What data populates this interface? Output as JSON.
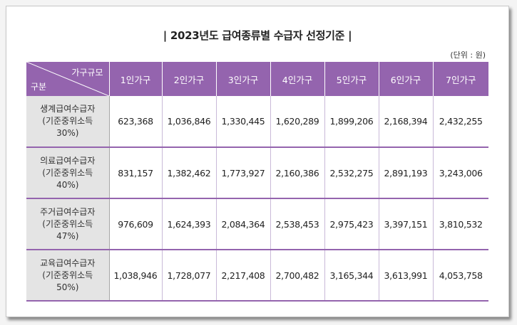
{
  "title": "| 2023년도 급여종류별 수급자 선정기준 |",
  "unit": "(단위 : 원)",
  "table": {
    "corner_top": "가구규모",
    "corner_bottom": "구분",
    "columns": [
      "1인가구",
      "2인가구",
      "3인가구",
      "4인가구",
      "5인가구",
      "6인가구",
      "7인가구"
    ],
    "rows": [
      {
        "label_line1": "생계급여수급자",
        "label_line2": "(기준중위소득",
        "label_line3": "30%)",
        "values": [
          "623,368",
          "1,036,846",
          "1,330,445",
          "1,620,289",
          "1,899,206",
          "2,168,394",
          "2,432,255"
        ]
      },
      {
        "label_line1": "의료급여수급자",
        "label_line2": "(기준중위소득",
        "label_line3": "40%)",
        "values": [
          "831,157",
          "1,382,462",
          "1,773,927",
          "2,160,386",
          "2,532,275",
          "2,891,193",
          "3,243,006"
        ]
      },
      {
        "label_line1": "주거급여수급자",
        "label_line2": "(기준중위소득",
        "label_line3": "47%)",
        "values": [
          "976,609",
          "1,624,393",
          "2,084,364",
          "2,538,453",
          "2,975,423",
          "3,397,151",
          "3,810,532"
        ]
      },
      {
        "label_line1": "교육급여수급자",
        "label_line2": "(기준중위소득",
        "label_line3": "50%)",
        "values": [
          "1,038,946",
          "1,728,077",
          "2,217,408",
          "2,700,482",
          "3,165,344",
          "3,613,991",
          "4,053,758"
        ]
      }
    ]
  },
  "colors": {
    "header_bg": "#9464ae",
    "row_divider": "#9464ae",
    "label_bg": "#e4e4e4"
  }
}
